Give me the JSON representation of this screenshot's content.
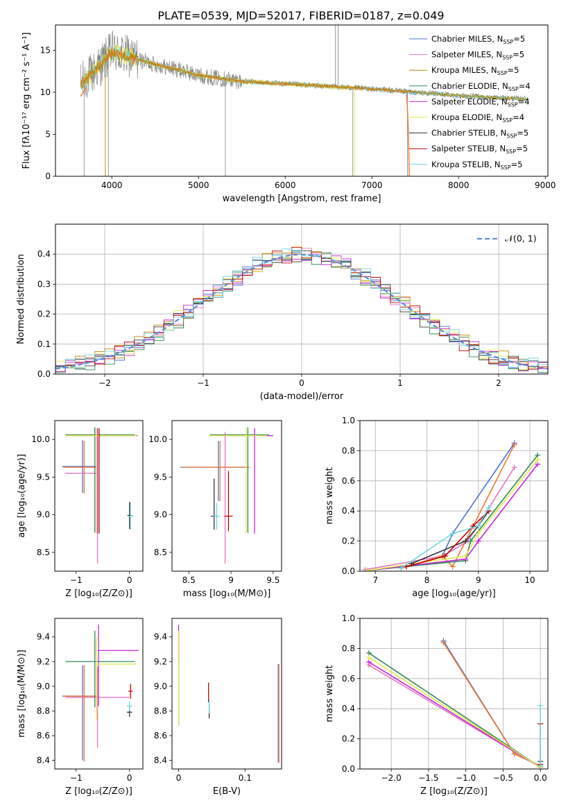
{
  "figure_title": "PLATE=0539, MJD=52017, FIBERID=0187, z=0.049",
  "colors": {
    "Chabrier MILES": "#4c72d8",
    "Salpeter MILES": "#e377c2",
    "Kroupa MILES": "#b8860b",
    "Chabrier ELODIE": "#2e8b57",
    "Salpeter ELODIE": "#c724d8",
    "Kroupa ELODIE": "#e3e84a",
    "Chabrier STELIB": "#333333",
    "Salpeter STELIB": "#c00000",
    "Kroupa STELIB": "#6fd6e0",
    "data": "#7f7f7f",
    "model_orange": "#ee7733",
    "normal_curve": "#5b8fd8"
  },
  "chart_data": [
    {
      "type": "line",
      "title": "",
      "xlabel": "wavelength [Angstrom, rest frame]",
      "ylabel": "Flux [fλ10⁻¹⁷ erg cm⁻² s⁻¹ A⁻¹]",
      "xlim": [
        3350,
        9030
      ],
      "ylim": [
        0,
        18
      ],
      "xticks": [
        4000,
        5000,
        6000,
        7000,
        8000,
        9000
      ],
      "yticks": [
        0,
        5,
        10,
        15
      ],
      "legend": {
        "position": "top-right",
        "entries": [
          "Chabrier MILES, NSSP=5",
          "Salpeter MILES, NSSP=5",
          "Kroupa MILES, NSSP=5",
          "Chabrier ELODIE, NSSP=4",
          "Salpeter ELODIE, NSSP=4",
          "Kroupa ELODIE, NSSP=4",
          "Chabrier STELIB, NSSP=5",
          "Salpeter STELIB, NSSP=5",
          "Kroupa STELIB, NSSP=5"
        ]
      },
      "continuum": [
        [
          3640,
          11
        ],
        [
          3800,
          12.5
        ],
        [
          4000,
          14.8
        ],
        [
          4200,
          14.2
        ],
        [
          4500,
          13.3
        ],
        [
          4800,
          12.6
        ],
        [
          5000,
          12.0
        ],
        [
          5500,
          11.3
        ],
        [
          6000,
          11.0
        ],
        [
          6500,
          10.7
        ],
        [
          7000,
          10.4
        ],
        [
          7500,
          10.0
        ],
        [
          8000,
          9.6
        ],
        [
          8500,
          9.3
        ],
        [
          8800,
          9.2
        ]
      ]
    },
    {
      "type": "step",
      "title": "",
      "xlabel": "(data-model)/error",
      "ylabel": "Normed distribution",
      "xlim": [
        -2.5,
        2.5
      ],
      "ylim": [
        0,
        0.5
      ],
      "xticks": [
        -2,
        -1,
        0,
        1,
        2
      ],
      "yticks": [
        0.0,
        0.1,
        0.2,
        0.3,
        0.4
      ],
      "grid": true,
      "legend": {
        "position": "top-right",
        "entries": [
          "𝒩(0, 1)"
        ]
      },
      "bin_width": 0.1
    },
    {
      "type": "errorbar",
      "xlabel": "Z [log₁₀(Z/Z⊙)]",
      "ylabel": "age  [log₁₀(age/yr)]",
      "xlim": [
        -1.4,
        0.25
      ],
      "ylim": [
        8.25,
        10.25
      ],
      "xticks": [
        -1,
        0
      ],
      "yticks": [
        8.5,
        9.0,
        9.5,
        10.0
      ],
      "points": [
        {
          "series": "Chabrier MILES",
          "x": -0.88,
          "y": 9.64,
          "xerr": [
            0.38,
            0.25
          ],
          "yerr": [
            0.35,
            0.35
          ]
        },
        {
          "series": "Salpeter MILES",
          "x": -0.6,
          "y": 9.55,
          "xerr": [
            0.6,
            0.0
          ],
          "yerr": [
            1.2,
            0.55
          ]
        },
        {
          "series": "Kroupa MILES",
          "x": -0.85,
          "y": 9.63,
          "xerr": [
            0.4,
            0.25
          ],
          "yerr": [
            0.35,
            0.35
          ]
        },
        {
          "series": "Chabrier ELODIE",
          "x": -0.65,
          "y": 10.06,
          "xerr": [
            0.55,
            0.75
          ],
          "yerr": [
            1.3,
            0.1
          ]
        },
        {
          "series": "Salpeter ELODIE",
          "x": -0.6,
          "y": 10.05,
          "xerr": [
            0.6,
            0.75
          ],
          "yerr": [
            1.3,
            0.1
          ]
        },
        {
          "series": "Kroupa ELODIE",
          "x": -0.62,
          "y": 10.05,
          "xerr": [
            0.58,
            0.75
          ],
          "yerr": [
            1.3,
            0.1
          ]
        },
        {
          "series": "Chabrier STELIB",
          "x": 0.0,
          "y": 8.99,
          "xerr": [
            0.04,
            0.04
          ],
          "yerr": [
            0.18,
            0.18
          ]
        },
        {
          "series": "Salpeter STELIB",
          "x": -0.57,
          "y": 9.45,
          "xerr": [
            0.0,
            0.0
          ],
          "yerr": [
            0.7,
            0.7
          ]
        },
        {
          "series": "Kroupa STELIB",
          "x": 0.02,
          "y": 8.98,
          "xerr": [
            0.05,
            0.05
          ],
          "yerr": [
            0.18,
            0.18
          ]
        }
      ]
    },
    {
      "type": "errorbar",
      "xlabel": "mass [log₁₀(M/M⊙)]",
      "ylabel": "",
      "xlim": [
        8.3,
        9.6
      ],
      "ylim": [
        8.25,
        10.25
      ],
      "xticks": [
        8.5,
        9.0,
        9.5
      ],
      "yticks": [
        8.5,
        9.0,
        9.5,
        10.0
      ],
      "points": [
        {
          "series": "Chabrier MILES",
          "x": 8.85,
          "y": 9.63,
          "xerr": [
            0.45,
            0.35
          ],
          "yerr": [
            0.45,
            0.35
          ]
        },
        {
          "series": "Salpeter MILES",
          "x": 8.93,
          "y": 9.55,
          "xerr": [
            0.0,
            0.0
          ],
          "yerr": [
            1.2,
            0.55
          ]
        },
        {
          "series": "Kroupa MILES",
          "x": 8.87,
          "y": 9.63,
          "xerr": [
            0.45,
            0.35
          ],
          "yerr": [
            0.45,
            0.35
          ]
        },
        {
          "series": "Chabrier ELODIE",
          "x": 9.2,
          "y": 10.06,
          "xerr": [
            0.45,
            0.25
          ],
          "yerr": [
            1.3,
            0.1
          ]
        },
        {
          "series": "Salpeter ELODIE",
          "x": 9.28,
          "y": 10.05,
          "xerr": [
            0.45,
            0.22
          ],
          "yerr": [
            1.3,
            0.1
          ]
        },
        {
          "series": "Kroupa ELODIE",
          "x": 9.18,
          "y": 10.05,
          "xerr": [
            0.45,
            0.25
          ],
          "yerr": [
            1.3,
            0.1
          ]
        },
        {
          "series": "Chabrier STELIB",
          "x": 8.8,
          "y": 8.98,
          "xerr": [
            0.04,
            0.04
          ],
          "yerr": [
            0.18,
            0.5
          ]
        },
        {
          "series": "Salpeter STELIB",
          "x": 8.97,
          "y": 8.98,
          "xerr": [
            0.05,
            0.05
          ],
          "yerr": [
            0.2,
            0.6
          ]
        },
        {
          "series": "Kroupa STELIB",
          "x": 8.83,
          "y": 8.98,
          "xerr": [
            0.04,
            0.04
          ],
          "yerr": [
            0.18,
            0.18
          ]
        }
      ]
    },
    {
      "type": "line",
      "xlabel": "age  [log₁₀(age/yr)]",
      "ylabel": "mass weight",
      "xlim": [
        6.7,
        10.35
      ],
      "ylim": [
        0,
        1
      ],
      "xticks": [
        7,
        8,
        9,
        10
      ],
      "yticks": [
        0.0,
        0.2,
        0.4,
        0.6,
        0.8,
        1.0
      ],
      "grid": true,
      "series": [
        {
          "name": "Chabrier MILES",
          "points": [
            [
              7.5,
              0.02
            ],
            [
              8.3,
              0.1
            ],
            [
              8.5,
              0.25
            ],
            [
              9.7,
              0.85
            ]
          ]
        },
        {
          "name": "Salpeter MILES",
          "points": [
            [
              6.8,
              0.01
            ],
            [
              8.3,
              0.1
            ],
            [
              8.8,
              0.2
            ],
            [
              9.7,
              0.69
            ]
          ]
        },
        {
          "name": "Kroupa MILES",
          "points": [
            [
              7.5,
              0.02
            ],
            [
              8.3,
              0.1
            ],
            [
              8.5,
              0.03
            ],
            [
              9.7,
              0.84
            ]
          ]
        },
        {
          "name": "Chabrier ELODIE",
          "points": [
            [
              6.85,
              0.005
            ],
            [
              8.75,
              0.07
            ],
            [
              8.85,
              0.2
            ],
            [
              10.15,
              0.77
            ]
          ]
        },
        {
          "name": "Salpeter ELODIE",
          "points": [
            [
              6.85,
              0.005
            ],
            [
              8.75,
              0.08
            ],
            [
              9.0,
              0.2
            ],
            [
              10.15,
              0.71
            ]
          ]
        },
        {
          "name": "Kroupa ELODIE",
          "points": [
            [
              6.85,
              0.005
            ],
            [
              8.75,
              0.1
            ],
            [
              9.0,
              0.25
            ],
            [
              10.15,
              0.74
            ]
          ]
        },
        {
          "name": "Chabrier STELIB",
          "points": [
            [
              7.7,
              0.05
            ],
            [
              8.75,
              0.2
            ],
            [
              9.0,
              0.3
            ],
            [
              9.2,
              0.4
            ]
          ]
        },
        {
          "name": "Salpeter STELIB",
          "points": [
            [
              7.6,
              0.03
            ],
            [
              8.35,
              0.1
            ],
            [
              8.9,
              0.3
            ],
            [
              9.2,
              0.4
            ]
          ]
        },
        {
          "name": "Kroupa STELIB",
          "points": [
            [
              7.5,
              0.02
            ],
            [
              8.5,
              0.25
            ],
            [
              9.0,
              0.3
            ],
            [
              9.2,
              0.42
            ]
          ]
        }
      ]
    },
    {
      "type": "errorbar",
      "xlabel": "Z [log₁₀(Z/Z⊙)]",
      "ylabel": "mass [log₁₀(M/M⊙)]",
      "xlim": [
        -1.4,
        0.25
      ],
      "ylim": [
        8.33,
        9.55
      ],
      "xticks": [
        -1,
        0
      ],
      "yticks": [
        8.4,
        8.6,
        8.8,
        9.0,
        9.2,
        9.4
      ],
      "points": [
        {
          "series": "Chabrier MILES",
          "x": -0.88,
          "y": 8.92,
          "xerr": [
            0.38,
            0.25
          ],
          "yerr": [
            0.52,
            0.25
          ]
        },
        {
          "series": "Salpeter MILES",
          "x": -0.6,
          "y": 8.91,
          "xerr": [
            0.6,
            0.6
          ],
          "yerr": [
            0.41,
            0.25
          ]
        },
        {
          "series": "Kroupa MILES",
          "x": -0.85,
          "y": 8.92,
          "xerr": [
            0.4,
            0.25
          ],
          "yerr": [
            0.53,
            0.25
          ]
        },
        {
          "series": "Chabrier ELODIE",
          "x": -0.65,
          "y": 9.2,
          "xerr": [
            0.55,
            0.75
          ],
          "yerr": [
            0.37,
            0.25
          ]
        },
        {
          "series": "Salpeter ELODIE",
          "x": -0.58,
          "y": 9.29,
          "xerr": [
            0.0,
            0.75
          ],
          "yerr": [
            0.45,
            0.21
          ]
        },
        {
          "series": "Kroupa ELODIE",
          "x": -0.62,
          "y": 9.18,
          "xerr": [
            0.0,
            0.75
          ],
          "yerr": [
            0.45,
            0.22
          ]
        },
        {
          "series": "Chabrier STELIB",
          "x": 0.0,
          "y": 8.79,
          "xerr": [
            0.05,
            0.05
          ],
          "yerr": [
            0.04,
            0.04
          ]
        },
        {
          "series": "Salpeter STELIB",
          "x": 0.02,
          "y": 8.96,
          "xerr": [
            0.04,
            0.04
          ],
          "yerr": [
            0.06,
            0.06
          ]
        },
        {
          "series": "Kroupa STELIB",
          "x": 0.0,
          "y": 8.84,
          "xerr": [
            0.05,
            0.05
          ],
          "yerr": [
            0.04,
            0.04
          ]
        }
      ]
    },
    {
      "type": "errorbar",
      "xlabel": "E(B-V)",
      "ylabel": "",
      "xlim": [
        -0.01,
        0.155
      ],
      "ylim": [
        8.33,
        9.55
      ],
      "xticks": [
        0.0,
        0.1
      ],
      "yticks": [
        8.4,
        8.6,
        8.8,
        9.0,
        9.2,
        9.4
      ],
      "points": [
        {
          "series": "Chabrier ELODIE",
          "x": 0.0,
          "y": 9.1,
          "xerr": [
            0.0,
            0.0
          ],
          "yerr": [
            0.42,
            0.35
          ]
        },
        {
          "series": "Salpeter ELODIE",
          "x": 0.0,
          "y": 9.3,
          "xerr": [
            0.0,
            0.0
          ],
          "yerr": [
            0.1,
            0.2
          ]
        },
        {
          "series": "Kroupa ELODIE",
          "x": 0.0,
          "y": 9.1,
          "xerr": [
            0.0,
            0.0
          ],
          "yerr": [
            0.42,
            0.35
          ]
        },
        {
          "series": "Chabrier STELIB",
          "x": 0.046,
          "y": 8.8,
          "xerr": [
            0.0,
            0.0
          ],
          "yerr": [
            0.06,
            0.06
          ]
        },
        {
          "series": "Salpeter STELIB",
          "x": 0.045,
          "y": 8.95,
          "xerr": [
            0.0,
            0.0
          ],
          "yerr": [
            0.08,
            0.08
          ]
        },
        {
          "series": "Kroupa STELIB",
          "x": 0.046,
          "y": 8.84,
          "xerr": [
            0.0,
            0.0
          ],
          "yerr": [
            0.06,
            0.06
          ]
        },
        {
          "series": "Chabrier MILES",
          "x": 0.15,
          "y": 8.8,
          "xerr": [
            0.0,
            0.0
          ],
          "yerr": [
            0.42,
            0.38
          ]
        },
        {
          "series": "Kroupa MILES",
          "x": 0.151,
          "y": 8.8,
          "xerr": [
            0.0,
            0.0
          ],
          "yerr": [
            0.42,
            0.38
          ]
        }
      ]
    },
    {
      "type": "line",
      "xlabel": "Z [log₁₀(Z/Z⊙)]",
      "ylabel": "mass weight",
      "xlim": [
        -2.42,
        0.1
      ],
      "ylim": [
        0,
        1
      ],
      "xticks": [
        -2.0,
        -1.5,
        -1.0,
        -0.5,
        0.0
      ],
      "yticks": [
        0.0,
        0.2,
        0.4,
        0.6,
        0.8,
        1.0
      ],
      "grid": true,
      "series": [
        {
          "name": "Chabrier MILES",
          "points": [
            [
              -1.3,
              0.85
            ],
            [
              -0.35,
              0.1
            ],
            [
              0.0,
              0.02
            ]
          ]
        },
        {
          "name": "Kroupa MILES",
          "points": [
            [
              -1.3,
              0.84
            ],
            [
              -0.35,
              0.1
            ],
            [
              0.0,
              0.02
            ]
          ]
        },
        {
          "name": "Salpeter MILES",
          "points": [
            [
              -2.3,
              0.69
            ],
            [
              0.0,
              0.01
            ]
          ]
        },
        {
          "name": "Chabrier ELODIE",
          "points": [
            [
              -2.3,
              0.77
            ],
            [
              0.0,
              0.01
            ]
          ]
        },
        {
          "name": "Salpeter ELODIE",
          "points": [
            [
              -2.3,
              0.71
            ],
            [
              0.0,
              0.01
            ]
          ]
        },
        {
          "name": "Kroupa ELODIE",
          "points": [
            [
              -2.3,
              0.74
            ],
            [
              0.0,
              0.01
            ]
          ]
        },
        {
          "name": "Chabrier STELIB",
          "points": [
            [
              0.0,
              0.05
            ],
            [
              0.0,
              0.3
            ]
          ]
        },
        {
          "name": "Salpeter STELIB",
          "points": [
            [
              0.0,
              0.03
            ],
            [
              0.0,
              0.3
            ]
          ]
        },
        {
          "name": "Kroupa STELIB",
          "points": [
            [
              0.0,
              0.02
            ],
            [
              0.0,
              0.42
            ]
          ]
        }
      ]
    }
  ]
}
